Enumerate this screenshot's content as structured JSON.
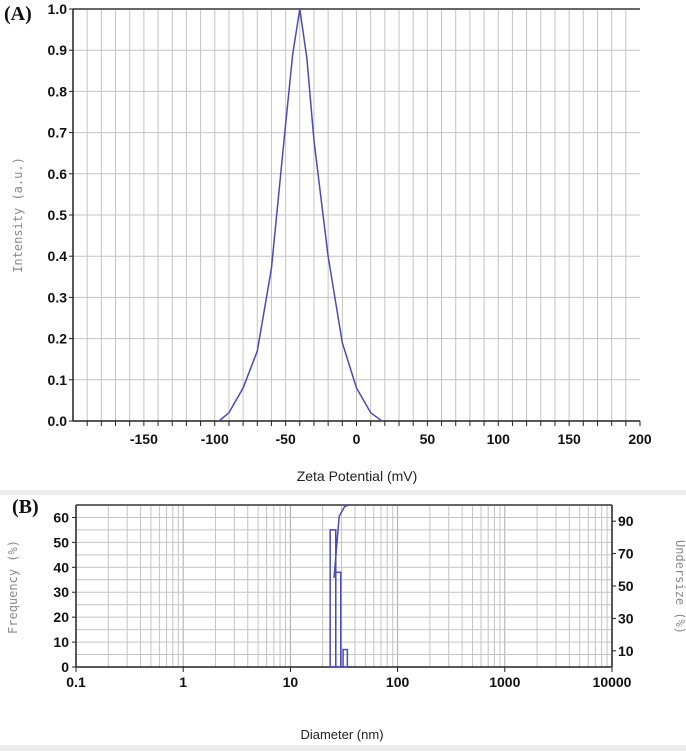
{
  "figure": {
    "panel_a_letter": "(A)",
    "panel_b_letter": "(B)"
  },
  "colors": {
    "curve": "#4a4ab8",
    "grid": "#c4c4c4",
    "axis": "#222222",
    "background": "#ffffff",
    "page": "#ececec"
  },
  "chart_data": [
    {
      "type": "line",
      "title": "",
      "xlabel": "Zeta Potential (mV)",
      "ylabel": "Intensity (a.u.)",
      "xlim": [
        -200,
        200
      ],
      "ylim": [
        0,
        1.0
      ],
      "x_ticks": [
        -150,
        -100,
        -50,
        0,
        50,
        100,
        150,
        200
      ],
      "y_ticks": [
        0.0,
        0.1,
        0.2,
        0.3,
        0.4,
        0.5,
        0.6,
        0.7,
        0.8,
        0.9,
        1.0
      ],
      "y_tick_labels": [
        "0.0",
        "0.1",
        "0.2",
        "0.3",
        "0.4",
        "0.5",
        "0.6",
        "0.7",
        "0.8",
        "0.9",
        "1.0"
      ],
      "grid": true,
      "series": [
        {
          "x": [
            -97,
            -90,
            -80,
            -70,
            -60,
            -50,
            -45,
            -40,
            -35,
            -30,
            -20,
            -10,
            0,
            10,
            18
          ],
          "y": [
            0.0,
            0.02,
            0.08,
            0.17,
            0.37,
            0.72,
            0.89,
            1.0,
            0.88,
            0.68,
            0.4,
            0.19,
            0.08,
            0.02,
            0.0
          ]
        }
      ]
    },
    {
      "type": "bar",
      "title": "",
      "xlabel": "Diameter (nm)",
      "ylabel": "Frequency (%)",
      "y2label": "Undersize (%)",
      "x_scale": "log",
      "xlim": [
        0.1,
        10000
      ],
      "ylim": [
        0,
        65
      ],
      "y2lim": [
        0,
        100
      ],
      "x_ticks": [
        0.1,
        1,
        10,
        100,
        1000,
        10000
      ],
      "x_tick_labels": [
        "0.1",
        "1",
        "10",
        "100",
        "1000",
        "10000"
      ],
      "y_ticks": [
        0,
        10,
        20,
        30,
        40,
        50,
        60
      ],
      "y2_ticks": [
        10,
        30,
        50,
        70,
        90
      ],
      "grid": true,
      "bars": [
        {
          "x_from": 23.5,
          "x_to": 26.5,
          "frequency": 55
        },
        {
          "x_from": 26.5,
          "x_to": 29.5,
          "frequency": 38
        },
        {
          "x_from": 31.0,
          "x_to": 34.0,
          "frequency": 7
        }
      ],
      "undersize_line": {
        "x": [
          25.5,
          28.5,
          32,
          35
        ],
        "undersize": [
          55,
          93,
          99,
          100
        ]
      }
    }
  ]
}
